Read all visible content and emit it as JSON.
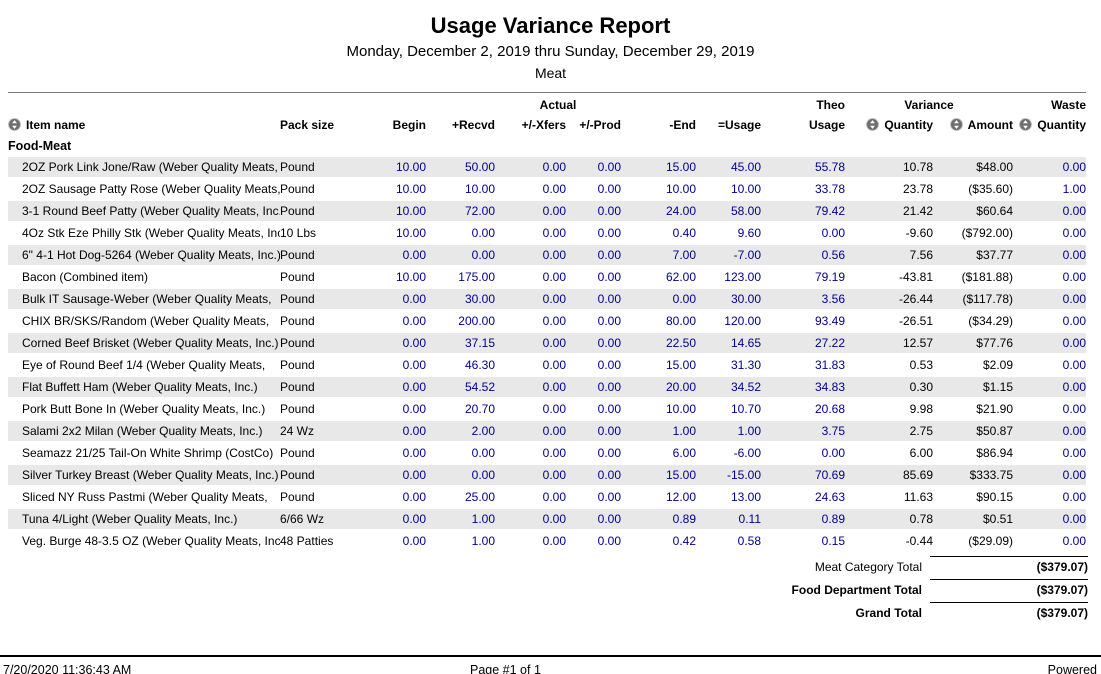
{
  "report": {
    "title": "Usage Variance Report",
    "date_range": "Monday, December 2, 2019 thru Sunday, December 29, 2019",
    "category": "Meat"
  },
  "colors": {
    "number_blue": "#00008B",
    "stripe": "#E8E8E8"
  },
  "table": {
    "header": {
      "actual_group": "Actual",
      "theo_top": "Theo",
      "variance_group": "Variance",
      "waste_top": "Waste",
      "item_name": "Item name",
      "pack_size": "Pack size",
      "begin": "Begin",
      "recvd": "+Recvd",
      "xfers": "+/-Xfers",
      "prod": "+/-Prod",
      "end": "-End",
      "usage": "=Usage",
      "theo_bottom": "Usage",
      "variance_quantity": "Quantity",
      "variance_amount": "Amount",
      "waste_quantity": "Quantity"
    },
    "group_label": "Food-Meat",
    "rows": [
      {
        "name": "2OZ Pork Link Jone/Raw (Weber Quality Meats,",
        "pack": "Pound",
        "begin": "10.00",
        "recvd": "50.00",
        "xfers": "0.00",
        "prod": "0.00",
        "end": "15.00",
        "usage": "45.00",
        "theo": "55.78",
        "var_qty": "10.78",
        "var_amt": "$48.00",
        "waste": "0.00"
      },
      {
        "name": "2OZ Sausage Patty Rose (Weber Quality Meats,",
        "pack": "Pound",
        "begin": "10.00",
        "recvd": "10.00",
        "xfers": "0.00",
        "prod": "0.00",
        "end": "10.00",
        "usage": "10.00",
        "theo": "33.78",
        "var_qty": "23.78",
        "var_amt": "($35.60)",
        "waste": "1.00"
      },
      {
        "name": "3-1 Round Beef Patty (Weber Quality Meats, Inc.)",
        "pack": "Pound",
        "begin": "10.00",
        "recvd": "72.00",
        "xfers": "0.00",
        "prod": "0.00",
        "end": "24.00",
        "usage": "58.00",
        "theo": "79.42",
        "var_qty": "21.42",
        "var_amt": "$60.64",
        "waste": "0.00"
      },
      {
        "name": "4Oz Stk Eze Philly Stk (Weber Quality Meats, Inc.)",
        "pack": "10 Lbs",
        "begin": "10.00",
        "recvd": "0.00",
        "xfers": "0.00",
        "prod": "0.00",
        "end": "0.40",
        "usage": "9.60",
        "theo": "0.00",
        "var_qty": "-9.60",
        "var_amt": "($792.00)",
        "waste": "0.00"
      },
      {
        "name": "6\" 4-1 Hot Dog-5264 (Weber Quality Meats, Inc.)",
        "pack": "Pound",
        "begin": "0.00",
        "recvd": "0.00",
        "xfers": "0.00",
        "prod": "0.00",
        "end": "7.00",
        "usage": "-7.00",
        "theo": "0.56",
        "var_qty": "7.56",
        "var_amt": "$37.77",
        "waste": "0.00"
      },
      {
        "name": "Bacon (Combined item)",
        "pack": "Pound",
        "begin": "10.00",
        "recvd": "175.00",
        "xfers": "0.00",
        "prod": "0.00",
        "end": "62.00",
        "usage": "123.00",
        "theo": "79.19",
        "var_qty": "-43.81",
        "var_amt": "($181.88)",
        "waste": "0.00"
      },
      {
        "name": "Bulk IT Sausage-Weber (Weber Quality Meats,",
        "pack": "Pound",
        "begin": "0.00",
        "recvd": "30.00",
        "xfers": "0.00",
        "prod": "0.00",
        "end": "0.00",
        "usage": "30.00",
        "theo": "3.56",
        "var_qty": "-26.44",
        "var_amt": "($117.78)",
        "waste": "0.00"
      },
      {
        "name": "CHIX BR/SKS/Random (Weber Quality Meats,",
        "pack": "Pound",
        "begin": "0.00",
        "recvd": "200.00",
        "xfers": "0.00",
        "prod": "0.00",
        "end": "80.00",
        "usage": "120.00",
        "theo": "93.49",
        "var_qty": "-26.51",
        "var_amt": "($34.29)",
        "waste": "0.00"
      },
      {
        "name": "Corned Beef Brisket (Weber Quality Meats, Inc.)",
        "pack": "Pound",
        "begin": "0.00",
        "recvd": "37.15",
        "xfers": "0.00",
        "prod": "0.00",
        "end": "22.50",
        "usage": "14.65",
        "theo": "27.22",
        "var_qty": "12.57",
        "var_amt": "$77.76",
        "waste": "0.00"
      },
      {
        "name": "Eye of Round Beef 1/4 (Weber Quality Meats,",
        "pack": "Pound",
        "begin": "0.00",
        "recvd": "46.30",
        "xfers": "0.00",
        "prod": "0.00",
        "end": "15.00",
        "usage": "31.30",
        "theo": "31.83",
        "var_qty": "0.53",
        "var_amt": "$2.09",
        "waste": "0.00"
      },
      {
        "name": "Flat Buffett Ham (Weber Quality Meats, Inc.)",
        "pack": "Pound",
        "begin": "0.00",
        "recvd": "54.52",
        "xfers": "0.00",
        "prod": "0.00",
        "end": "20.00",
        "usage": "34.52",
        "theo": "34.83",
        "var_qty": "0.30",
        "var_amt": "$1.15",
        "waste": "0.00"
      },
      {
        "name": "Pork Butt Bone In (Weber Quality Meats, Inc.)",
        "pack": "Pound",
        "begin": "0.00",
        "recvd": "20.70",
        "xfers": "0.00",
        "prod": "0.00",
        "end": "10.00",
        "usage": "10.70",
        "theo": "20.68",
        "var_qty": "9.98",
        "var_amt": "$21.90",
        "waste": "0.00"
      },
      {
        "name": "Salami 2x2 Milan (Weber Quality Meats, Inc.)",
        "pack": "24 Wz",
        "begin": "0.00",
        "recvd": "2.00",
        "xfers": "0.00",
        "prod": "0.00",
        "end": "1.00",
        "usage": "1.00",
        "theo": "3.75",
        "var_qty": "2.75",
        "var_amt": "$50.87",
        "waste": "0.00"
      },
      {
        "name": "Seamazz 21/25 Tail-On White Shrimp (CostCo)",
        "pack": "Pound",
        "begin": "0.00",
        "recvd": "0.00",
        "xfers": "0.00",
        "prod": "0.00",
        "end": "6.00",
        "usage": "-6.00",
        "theo": "0.00",
        "var_qty": "6.00",
        "var_amt": "$86.94",
        "waste": "0.00"
      },
      {
        "name": "Silver Turkey Breast (Weber Quality Meats, Inc.)",
        "pack": "Pound",
        "begin": "0.00",
        "recvd": "0.00",
        "xfers": "0.00",
        "prod": "0.00",
        "end": "15.00",
        "usage": "-15.00",
        "theo": "70.69",
        "var_qty": "85.69",
        "var_amt": "$333.75",
        "waste": "0.00"
      },
      {
        "name": "Sliced NY Russ Pastmi (Weber Quality Meats,",
        "pack": "Pound",
        "begin": "0.00",
        "recvd": "25.00",
        "xfers": "0.00",
        "prod": "0.00",
        "end": "12.00",
        "usage": "13.00",
        "theo": "24.63",
        "var_qty": "11.63",
        "var_amt": "$90.15",
        "waste": "0.00"
      },
      {
        "name": "Tuna 4/Light (Weber Quality Meats, Inc.)",
        "pack": "6/66 Wz",
        "begin": "0.00",
        "recvd": "1.00",
        "xfers": "0.00",
        "prod": "0.00",
        "end": "0.89",
        "usage": "0.11",
        "theo": "0.89",
        "var_qty": "0.78",
        "var_amt": "$0.51",
        "waste": "0.00"
      },
      {
        "name": "Veg. Burge 48-3.5 OZ (Weber Quality Meats, Inc.)",
        "pack": "48 Patties",
        "begin": "0.00",
        "recvd": "1.00",
        "xfers": "0.00",
        "prod": "0.00",
        "end": "0.42",
        "usage": "0.58",
        "theo": "0.15",
        "var_qty": "-0.44",
        "var_amt": "($29.09)",
        "waste": "0.00"
      }
    ]
  },
  "totals": [
    {
      "label": "Meat Category Total",
      "value": "($379.07)",
      "bold": false
    },
    {
      "label": "Food Department Total",
      "value": "($379.07)",
      "bold": true
    },
    {
      "label": "Grand Total",
      "value": "($379.07)",
      "bold": true
    }
  ],
  "footer": {
    "timestamp": "7/20/2020 11:36:43 AM",
    "page": "Page #1 of 1",
    "brand": "Powered"
  }
}
